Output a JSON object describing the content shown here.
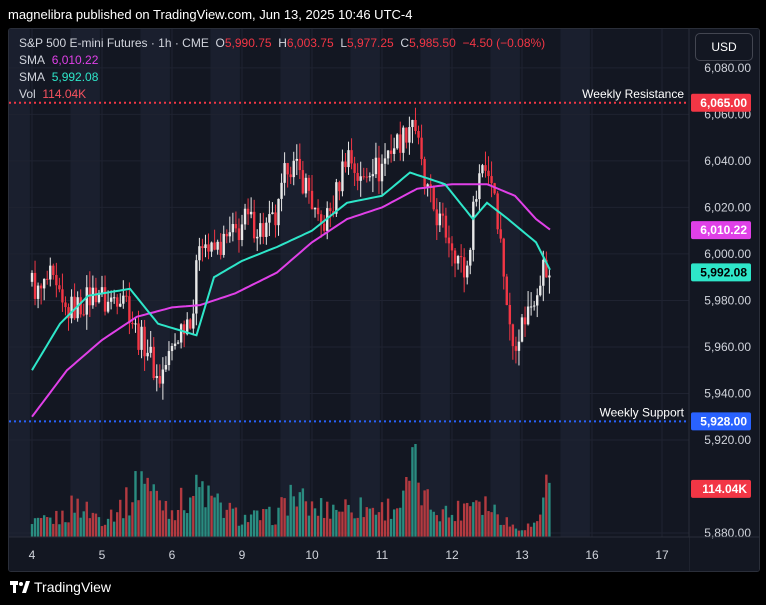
{
  "header": {
    "published": "magnelibra published on TradingView.com, Jun 13, 2025 10:46 UTC-4"
  },
  "legend": {
    "symbol": "S&P 500 E-mini Futures · 1h · CME",
    "o_label": "O",
    "o_value": "5,990.75",
    "h_label": "H",
    "h_value": "6,003.75",
    "l_label": "L",
    "l_value": "5,977.25",
    "c_label": "C",
    "c_value": "5,985.50",
    "change": "−4.50 (−0.08%)",
    "sma1_label": "SMA",
    "sma1_value": "6,010.22",
    "sma2_label": "SMA",
    "sma2_value": "5,992.08",
    "vol_label": "Vol",
    "vol_value": "114.04K"
  },
  "currency_button": "USD",
  "footer": {
    "brand": "TradingView"
  },
  "colors": {
    "background": "#131722",
    "band": "#1a1f2e",
    "grid": "#1f2331",
    "up": "#e8e8e8",
    "down": "#f23645",
    "sma_fast": "#2ee6c9",
    "sma_slow": "#e040e8",
    "resistance": "#f23645",
    "support": "#2962ff",
    "vol_up": "#2a8c80",
    "vol_down": "#b33a40"
  },
  "chart_data": {
    "type": "candlestick",
    "title": "S&P 500 E-mini Futures · 1h · CME",
    "ylim": [
      5880,
      6095
    ],
    "y_ticks": [
      "6,080.00",
      "6,060.00",
      "6,040.00",
      "6,020.00",
      "6,000.00",
      "5,980.00",
      "5,960.00",
      "5,940.00",
      "5,920.00",
      "5,880.00"
    ],
    "y_tick_values": [
      6080,
      6060,
      6040,
      6020,
      6000,
      5980,
      5960,
      5940,
      5920,
      5880
    ],
    "x_ticks": [
      {
        "label": "4",
        "day": 0
      },
      {
        "label": "5",
        "day": 1
      },
      {
        "label": "6",
        "day": 2
      },
      {
        "label": "9",
        "day": 3
      },
      {
        "label": "10",
        "day": 4
      },
      {
        "label": "11",
        "day": 5
      },
      {
        "label": "12",
        "day": 6
      },
      {
        "label": "13",
        "day": 7
      },
      {
        "label": "16",
        "day": 8
      },
      {
        "label": "17",
        "day": 9
      }
    ],
    "levels": [
      {
        "name": "Weekly Resistance",
        "value": 6065,
        "label": "6,065.00"
      },
      {
        "name": "Weekly Support",
        "value": 5928,
        "label": "5,928.00"
      }
    ],
    "price_badges": [
      {
        "name": "SMA",
        "value": 6010.22,
        "label": "6,010.22"
      },
      {
        "name": "SMA",
        "value": 5992.08,
        "label": "5,992.08"
      }
    ],
    "volume_badge": "114.04K",
    "close_anchors": [
      [
        0,
        5988
      ],
      [
        0.1,
        5982
      ],
      [
        0.25,
        5990
      ],
      [
        0.45,
        5975
      ],
      [
        0.7,
        5978
      ],
      [
        0.95,
        5985
      ],
      [
        1.05,
        5978
      ],
      [
        1.3,
        5985
      ],
      [
        1.5,
        5965
      ],
      [
        1.65,
        5960
      ],
      [
        1.8,
        5945
      ],
      [
        1.95,
        5955
      ],
      [
        2.15,
        5970
      ],
      [
        2.3,
        5975
      ],
      [
        2.4,
        6010
      ],
      [
        2.55,
        6000
      ],
      [
        2.75,
        6005
      ],
      [
        2.95,
        6010
      ],
      [
        3.05,
        6015
      ],
      [
        3.3,
        6010
      ],
      [
        3.5,
        6015
      ],
      [
        3.65,
        6040
      ],
      [
        3.8,
        6035
      ],
      [
        3.95,
        6028
      ],
      [
        4.1,
        6010
      ],
      [
        4.3,
        6020
      ],
      [
        4.5,
        6045
      ],
      [
        4.7,
        6030
      ],
      [
        4.85,
        6040
      ],
      [
        4.95,
        6035
      ],
      [
        5.1,
        6045
      ],
      [
        5.3,
        6050
      ],
      [
        5.45,
        6060
      ],
      [
        5.6,
        6030
      ],
      [
        5.8,
        6015
      ],
      [
        6.0,
        6005
      ],
      [
        6.2,
        5990
      ],
      [
        6.35,
        6030
      ],
      [
        6.45,
        6040
      ],
      [
        6.6,
        6030
      ],
      [
        6.75,
        5990
      ],
      [
        6.85,
        5960
      ],
      [
        7.0,
        5970
      ],
      [
        7.15,
        5980
      ],
      [
        7.3,
        5995
      ],
      [
        7.42,
        5986
      ]
    ],
    "volume_ylim": [
      0,
      125
    ],
    "volume_anchors": [
      [
        0,
        20
      ],
      [
        0.5,
        35
      ],
      [
        0.6,
        55
      ],
      [
        1.0,
        30
      ],
      [
        1.4,
        60
      ],
      [
        1.6,
        110
      ],
      [
        1.7,
        75
      ],
      [
        2.0,
        45
      ],
      [
        2.4,
        80
      ],
      [
        2.6,
        55
      ],
      [
        3.0,
        30
      ],
      [
        3.5,
        35
      ],
      [
        3.7,
        70
      ],
      [
        4.0,
        45
      ],
      [
        4.5,
        50
      ],
      [
        5.0,
        45
      ],
      [
        5.3,
        55
      ],
      [
        5.45,
        120
      ],
      [
        5.6,
        60
      ],
      [
        6.0,
        35
      ],
      [
        6.35,
        70
      ],
      [
        6.5,
        55
      ],
      [
        6.9,
        15
      ],
      [
        7.2,
        20
      ],
      [
        7.42,
        114
      ]
    ],
    "sma_fast_anchors": [
      [
        0,
        5950
      ],
      [
        0.4,
        5970
      ],
      [
        0.8,
        5982
      ],
      [
        1.4,
        5985
      ],
      [
        1.8,
        5970
      ],
      [
        2.35,
        5965
      ],
      [
        2.6,
        5990
      ],
      [
        3.0,
        5997
      ],
      [
        3.5,
        6003
      ],
      [
        4.0,
        6010
      ],
      [
        4.5,
        6022
      ],
      [
        5.0,
        6025
      ],
      [
        5.4,
        6035
      ],
      [
        5.9,
        6030
      ],
      [
        6.3,
        6015
      ],
      [
        6.5,
        6022
      ],
      [
        6.8,
        6015
      ],
      [
        7.2,
        6005
      ],
      [
        7.42,
        5992
      ]
    ],
    "sma_slow_anchors": [
      [
        0,
        5930
      ],
      [
        0.5,
        5950
      ],
      [
        1.0,
        5963
      ],
      [
        1.5,
        5973
      ],
      [
        2.0,
        5977
      ],
      [
        2.4,
        5978
      ],
      [
        2.9,
        5983
      ],
      [
        3.5,
        5992
      ],
      [
        4.0,
        6005
      ],
      [
        4.5,
        6015
      ],
      [
        5.0,
        6020
      ],
      [
        5.5,
        6028
      ],
      [
        6.0,
        6030
      ],
      [
        6.5,
        6030
      ],
      [
        6.9,
        6025
      ],
      [
        7.2,
        6015
      ],
      [
        7.42,
        6010
      ]
    ]
  }
}
